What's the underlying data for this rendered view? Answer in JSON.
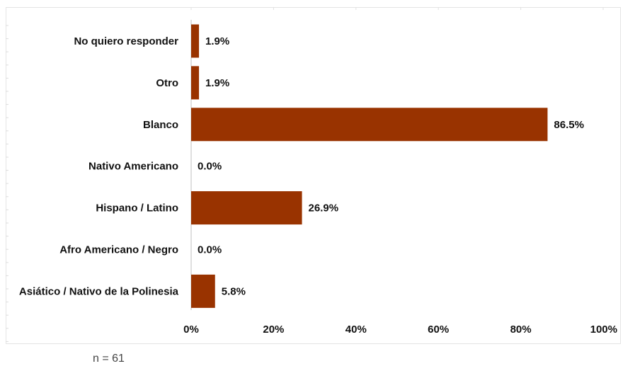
{
  "chart_data": {
    "type": "bar",
    "orientation": "horizontal",
    "categories": [
      "No quiero responder",
      "Otro",
      "Blanco",
      "Nativo Americano",
      "Hispano / Latino",
      "Afro Americano / Negro",
      "Asiático / Nativo de la Polinesia"
    ],
    "values": [
      1.9,
      1.9,
      86.5,
      0.0,
      26.9,
      0.0,
      5.8
    ],
    "value_labels": [
      "1.9%",
      "1.9%",
      "86.5%",
      "0.0%",
      "26.9%",
      "0.0%",
      "5.8%"
    ],
    "xlim": [
      0,
      100
    ],
    "x_ticks": [
      "0%",
      "20%",
      "40%",
      "60%",
      "80%",
      "100%"
    ],
    "bar_color": "#993300",
    "grid": false,
    "legend": "none"
  },
  "footnote": "n = 61"
}
